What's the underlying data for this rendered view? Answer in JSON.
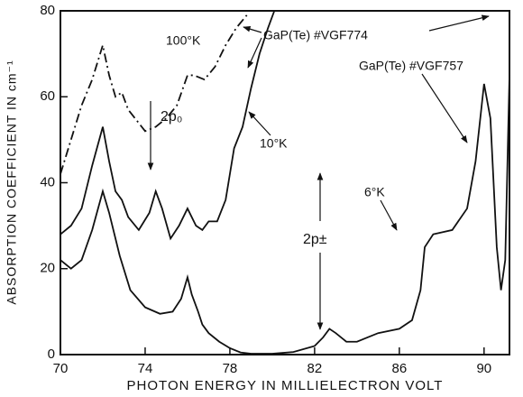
{
  "chart_data": {
    "type": "line",
    "xlabel": "PHOTON ENERGY IN MILLIELECTRON VOLT",
    "ylabel": "ABSORPTION COEFFICIENT IN cm⁻¹",
    "xlim": [
      70,
      91.2
    ],
    "ylim": [
      0,
      80
    ],
    "xticks": [
      70,
      74,
      78,
      82,
      86,
      90
    ],
    "yticks": [
      0,
      20,
      40,
      60,
      80
    ],
    "series": [
      {
        "name": "100°K",
        "color": "#111111",
        "dash": "dash-dot",
        "x": [
          70,
          70.5,
          71,
          71.5,
          72,
          72.3,
          72.6,
          72.9,
          73.2,
          74,
          74.5,
          75,
          75.5,
          76,
          76.3,
          76.8,
          77.3,
          77.8,
          78.3,
          78.8
        ],
        "values": [
          42,
          50,
          58,
          64,
          72,
          65,
          60,
          61,
          57,
          52,
          53,
          55,
          58,
          65,
          65,
          64,
          67,
          72,
          76,
          79
        ]
      },
      {
        "name": "10°K",
        "color": "#111111",
        "dash": "solid",
        "x": [
          70,
          70.5,
          71,
          71.5,
          72,
          72.3,
          72.6,
          72.9,
          73.2,
          73.7,
          74.2,
          74.5,
          74.8,
          75.2,
          75.6,
          76,
          76.4,
          76.7,
          77,
          77.4,
          77.8,
          78.2,
          78.6,
          79,
          79.4,
          79.8,
          80.1
        ],
        "values": [
          28,
          30,
          34,
          44,
          53,
          45,
          38,
          36,
          32,
          29,
          33,
          38,
          34,
          27,
          30,
          34,
          30,
          29,
          31,
          31,
          36,
          48,
          53,
          62,
          70,
          76,
          80
        ]
      },
      {
        "name": "6°K",
        "color": "#111111",
        "dash": "solid",
        "x": [
          70,
          70.5,
          71,
          71.5,
          72,
          72.3,
          72.8,
          73.3,
          74,
          74.7,
          75.3,
          75.7,
          76,
          76.2,
          76.5,
          76.7,
          77,
          77.5,
          78,
          78.5,
          79,
          80,
          81,
          82,
          82.4,
          82.7,
          83,
          83.5,
          84,
          84.5,
          85,
          86,
          86.6,
          87,
          87.2,
          87.6,
          88.5,
          89.2,
          89.6,
          90,
          90.3,
          90.6,
          90.8,
          91,
          91.2
        ],
        "values": [
          22,
          20,
          22,
          29,
          38,
          33,
          23,
          15,
          11,
          9.5,
          10,
          13,
          18,
          14,
          10,
          7,
          5,
          3,
          1.5,
          0.5,
          0.2,
          0.2,
          0.6,
          2,
          4,
          6,
          5,
          3,
          3,
          4,
          5,
          6,
          8,
          15,
          25,
          28,
          29,
          34,
          45,
          63,
          55,
          25,
          15,
          22,
          65
        ]
      }
    ],
    "annotations": [
      "100°K",
      "GaP(Te) #VGF774",
      "10°K",
      "GaP(Te) #VGF757",
      "2p₀",
      "2p±",
      "6°K"
    ]
  }
}
